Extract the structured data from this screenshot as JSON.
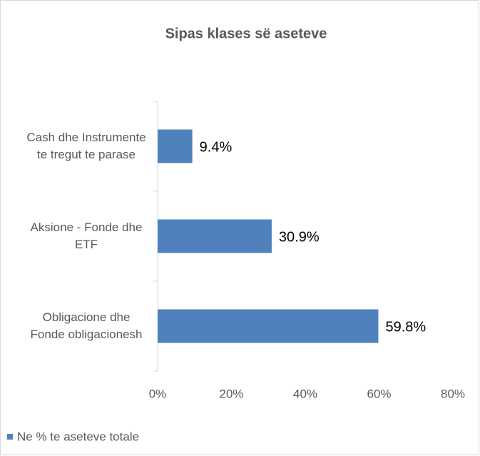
{
  "chart_data": {
    "type": "barh",
    "title": "Sipas klases së aseteve",
    "categories": [
      "Cash dhe Instrumente te tregut te parase",
      "Aksione - Fonde dhe ETF",
      "Obligacione dhe Fonde obligacionesh"
    ],
    "series": [
      {
        "name": "Ne % te aseteve totale",
        "color": "#4f81bd",
        "values": [
          9.4,
          30.9,
          59.8
        ],
        "value_labels": [
          "9.4%",
          "30.9%",
          "59.8%"
        ]
      }
    ],
    "xlim": [
      0,
      80
    ],
    "xticks": [
      {
        "value": 0,
        "label": "0%"
      },
      {
        "value": 20,
        "label": "20%"
      },
      {
        "value": 40,
        "label": "40%"
      },
      {
        "value": 60,
        "label": "60%"
      },
      {
        "value": 80,
        "label": "80%"
      }
    ],
    "legend": "bottom-left"
  }
}
